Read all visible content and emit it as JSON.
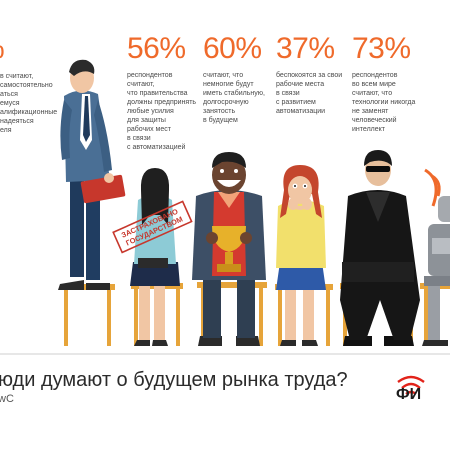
{
  "stats": [
    {
      "percent": "%",
      "text": "в считают,\nсамостоятельно\nаться\nемуся\nалификационные\nнадеяться\nеля"
    },
    {
      "percent": "56%",
      "text": "респондентов\nсчитают,\nчто правительства\nдолжны предпринять\nлюбые усилия\nдля защиты\nрабочих мест\nв связи\nс автоматизацией"
    },
    {
      "percent": "60%",
      "text": "считают, что\nнемногие будут\nиметь стабильную,\nдолгосрочную\nзанятость\nв будущем"
    },
    {
      "percent": "37%",
      "text": "беспокоятся за свои\nрабочие места\nв связи\nс развитием\nавтоматизации"
    },
    {
      "percent": "73%",
      "text": "респондентов\nво всем мире\nсчитают, что\nтехнологии никогда\nне заменят\nчеловеческий\nинтеллект"
    }
  ],
  "stamp_text": "ЗАСТРАХОВАНО ГОСУДАРСТВОМ",
  "question": "юди думают о будущем рынка труда?",
  "source": "wC",
  "logo": "ФИ",
  "colors": {
    "accent": "#ef6a2b",
    "chair": "#e6a43a",
    "logo_red": "#e2231a"
  },
  "illustration": [
    "business-man",
    "woman-with-stamp",
    "man-with-trophy",
    "scared-woman",
    "man-in-black-coat",
    "robot"
  ]
}
